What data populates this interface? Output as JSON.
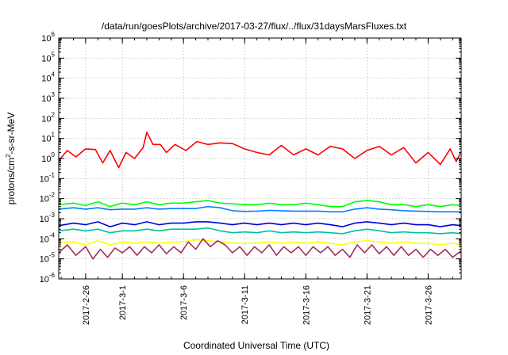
{
  "chart_data": {
    "type": "line",
    "title": "/data/run/goesPlots/archive/2017-03-27/flux/../flux/31daysMarsFluxes.txt",
    "xlabel": "Coordinated Universal Time (UTC)",
    "ylabel": "protons/cm²-s-sr-MeV",
    "ylabel_parts": [
      "protons/cm",
      "2",
      "-s-sr-MeV"
    ],
    "yscale": "log",
    "ylim_exp": [
      -6,
      6
    ],
    "y_tick_exps": [
      -6,
      -5,
      -4,
      -3,
      -2,
      -1,
      0,
      1,
      2,
      3,
      4,
      5,
      6
    ],
    "y_tick_base": "10",
    "xlim_days": [
      -5.2,
      27.7
    ],
    "x_tick_labels": [
      "2017-2-26",
      "2017-3-1",
      "2017-3-6",
      "2017-3-11",
      "2017-3-16",
      "2017-3-21",
      "2017-3-26"
    ],
    "x_tick_days": [
      -3,
      0,
      5,
      10,
      15,
      20,
      25
    ],
    "grid": true,
    "legend": "none",
    "series": [
      {
        "color": "#ff0000",
        "points": [
          [
            -5.2,
            0.8
          ],
          [
            -4.5,
            2.5
          ],
          [
            -3.8,
            1.2
          ],
          [
            -3.0,
            3.0
          ],
          [
            -2.2,
            2.8
          ],
          [
            -1.6,
            0.6
          ],
          [
            -1.0,
            2.5
          ],
          [
            -0.3,
            0.35
          ],
          [
            0.3,
            2.0
          ],
          [
            1.0,
            1.0
          ],
          [
            1.7,
            3.5
          ],
          [
            2.0,
            20
          ],
          [
            2.5,
            5
          ],
          [
            3.1,
            5
          ],
          [
            3.6,
            2
          ],
          [
            4.3,
            5
          ],
          [
            5.2,
            2.5
          ],
          [
            6.1,
            7.0
          ],
          [
            7.0,
            5
          ],
          [
            8.0,
            6
          ],
          [
            9.0,
            5.5
          ],
          [
            10.0,
            3
          ],
          [
            11.0,
            2
          ],
          [
            12.0,
            1.5
          ],
          [
            13.0,
            4.5
          ],
          [
            14.0,
            1.5
          ],
          [
            15.0,
            3
          ],
          [
            16.0,
            1.5
          ],
          [
            17.0,
            4
          ],
          [
            18.0,
            3
          ],
          [
            19.0,
            1.0
          ],
          [
            20.0,
            2.5
          ],
          [
            21.0,
            4
          ],
          [
            22.0,
            1.5
          ],
          [
            23.0,
            3.5
          ],
          [
            24.0,
            0.6
          ],
          [
            25.0,
            2.0
          ],
          [
            26.0,
            0.5
          ],
          [
            26.8,
            3.0
          ],
          [
            27.3,
            0.7
          ],
          [
            27.7,
            2.2
          ]
        ]
      },
      {
        "color": "#00ff00",
        "points": [
          [
            -5.2,
            0.005
          ],
          [
            -4.0,
            0.006
          ],
          [
            -3.0,
            0.0045
          ],
          [
            -2.0,
            0.007
          ],
          [
            -1.0,
            0.004
          ],
          [
            0.0,
            0.006
          ],
          [
            1.0,
            0.005
          ],
          [
            2.0,
            0.007
          ],
          [
            3.0,
            0.005
          ],
          [
            4.0,
            0.006
          ],
          [
            5.0,
            0.006
          ],
          [
            6.0,
            0.007
          ],
          [
            7.0,
            0.008
          ],
          [
            8.0,
            0.006
          ],
          [
            9.0,
            0.0055
          ],
          [
            10.0,
            0.005
          ],
          [
            11.0,
            0.005
          ],
          [
            12.0,
            0.006
          ],
          [
            13.0,
            0.005
          ],
          [
            14.0,
            0.005
          ],
          [
            15.0,
            0.006
          ],
          [
            16.0,
            0.005
          ],
          [
            17.0,
            0.004
          ],
          [
            18.0,
            0.004
          ],
          [
            19.0,
            0.007
          ],
          [
            20.0,
            0.008
          ],
          [
            21.0,
            0.007
          ],
          [
            22.0,
            0.005
          ],
          [
            23.0,
            0.005
          ],
          [
            24.0,
            0.004
          ],
          [
            25.0,
            0.005
          ],
          [
            26.0,
            0.004
          ],
          [
            27.0,
            0.005
          ],
          [
            27.7,
            0.0045
          ]
        ]
      },
      {
        "color": "#0080ff",
        "points": [
          [
            -5.2,
            0.003
          ],
          [
            -4.0,
            0.0035
          ],
          [
            -3.0,
            0.003
          ],
          [
            -2.0,
            0.0035
          ],
          [
            -1.0,
            0.0028
          ],
          [
            0.0,
            0.003
          ],
          [
            1.0,
            0.003
          ],
          [
            2.0,
            0.0035
          ],
          [
            3.0,
            0.003
          ],
          [
            4.0,
            0.0032
          ],
          [
            5.0,
            0.0032
          ],
          [
            6.0,
            0.0032
          ],
          [
            7.0,
            0.004
          ],
          [
            8.0,
            0.0035
          ],
          [
            9.0,
            0.0025
          ],
          [
            10.0,
            0.0023
          ],
          [
            11.0,
            0.0024
          ],
          [
            12.0,
            0.0026
          ],
          [
            13.0,
            0.0025
          ],
          [
            14.0,
            0.0024
          ],
          [
            15.0,
            0.0024
          ],
          [
            16.0,
            0.0024
          ],
          [
            17.0,
            0.0022
          ],
          [
            18.0,
            0.0022
          ],
          [
            19.0,
            0.003
          ],
          [
            20.0,
            0.0035
          ],
          [
            21.0,
            0.003
          ],
          [
            22.0,
            0.0028
          ],
          [
            23.0,
            0.0025
          ],
          [
            24.0,
            0.0024
          ],
          [
            25.0,
            0.0023
          ],
          [
            26.0,
            0.0022
          ],
          [
            27.0,
            0.0022
          ],
          [
            27.7,
            0.0022
          ]
        ]
      },
      {
        "color": "#0000e0",
        "points": [
          [
            -5.2,
            0.00045
          ],
          [
            -4.0,
            0.0006
          ],
          [
            -3.0,
            0.0005
          ],
          [
            -2.0,
            0.0007
          ],
          [
            -1.0,
            0.0004
          ],
          [
            0.0,
            0.0006
          ],
          [
            1.0,
            0.0005
          ],
          [
            2.0,
            0.0007
          ],
          [
            3.0,
            0.0005
          ],
          [
            4.0,
            0.0006
          ],
          [
            5.0,
            0.0006
          ],
          [
            6.0,
            0.0007
          ],
          [
            7.0,
            0.0007
          ],
          [
            8.0,
            0.0006
          ],
          [
            9.0,
            0.0005
          ],
          [
            10.0,
            0.0006
          ],
          [
            11.0,
            0.0005
          ],
          [
            12.0,
            0.0006
          ],
          [
            13.0,
            0.0005
          ],
          [
            14.0,
            0.0006
          ],
          [
            15.0,
            0.0005
          ],
          [
            16.0,
            0.0006
          ],
          [
            17.0,
            0.0005
          ],
          [
            18.0,
            0.0004
          ],
          [
            19.0,
            0.0006
          ],
          [
            20.0,
            0.0007
          ],
          [
            21.0,
            0.0006
          ],
          [
            22.0,
            0.0005
          ],
          [
            23.0,
            0.0006
          ],
          [
            24.0,
            0.0005
          ],
          [
            25.0,
            0.0005
          ],
          [
            26.0,
            0.0004
          ],
          [
            27.0,
            0.0005
          ],
          [
            27.7,
            0.00045
          ]
        ]
      },
      {
        "color": "#00c0a0",
        "points": [
          [
            -5.2,
            0.00025
          ],
          [
            -4.0,
            0.0003
          ],
          [
            -3.0,
            0.00025
          ],
          [
            -2.0,
            0.0003
          ],
          [
            -1.0,
            0.0002
          ],
          [
            0.0,
            0.00025
          ],
          [
            1.0,
            0.00025
          ],
          [
            2.0,
            0.0003
          ],
          [
            3.0,
            0.00025
          ],
          [
            4.0,
            0.0003
          ],
          [
            5.0,
            0.0003
          ],
          [
            6.0,
            0.0003
          ],
          [
            7.0,
            0.00035
          ],
          [
            8.0,
            0.00025
          ],
          [
            9.0,
            0.0002
          ],
          [
            10.0,
            0.00022
          ],
          [
            11.0,
            0.0002
          ],
          [
            12.0,
            0.00025
          ],
          [
            13.0,
            0.0002
          ],
          [
            14.0,
            0.00022
          ],
          [
            15.0,
            0.0002
          ],
          [
            16.0,
            0.00022
          ],
          [
            17.0,
            0.0002
          ],
          [
            18.0,
            0.00018
          ],
          [
            19.0,
            0.00025
          ],
          [
            20.0,
            0.0003
          ],
          [
            21.0,
            0.00025
          ],
          [
            22.0,
            0.0002
          ],
          [
            23.0,
            0.00022
          ],
          [
            24.0,
            0.0002
          ],
          [
            25.0,
            0.0002
          ],
          [
            26.0,
            0.00018
          ],
          [
            27.0,
            0.0002
          ],
          [
            27.7,
            0.00018
          ]
        ]
      },
      {
        "color": "#ffff00",
        "points": [
          [
            -5.2,
            6e-05
          ],
          [
            -4.0,
            7e-05
          ],
          [
            -3.0,
            5e-05
          ],
          [
            -2.0,
            8e-05
          ],
          [
            -1.0,
            5e-05
          ],
          [
            0.0,
            7e-05
          ],
          [
            1.0,
            6e-05
          ],
          [
            2.0,
            7e-05
          ],
          [
            3.0,
            6e-05
          ],
          [
            4.0,
            7e-05
          ],
          [
            5.0,
            7e-05
          ],
          [
            6.0,
            9e-05
          ],
          [
            7.0,
            8e-05
          ],
          [
            8.0,
            7e-05
          ],
          [
            9.0,
            6e-05
          ],
          [
            10.0,
            6e-05
          ],
          [
            11.0,
            6e-05
          ],
          [
            12.0,
            7e-05
          ],
          [
            13.0,
            6e-05
          ],
          [
            14.0,
            7e-05
          ],
          [
            15.0,
            6e-05
          ],
          [
            16.0,
            7e-05
          ],
          [
            17.0,
            6e-05
          ],
          [
            18.0,
            5e-05
          ],
          [
            19.0,
            7e-05
          ],
          [
            20.0,
            8e-05
          ],
          [
            21.0,
            7e-05
          ],
          [
            22.0,
            6e-05
          ],
          [
            23.0,
            7e-05
          ],
          [
            24.0,
            6e-05
          ],
          [
            25.0,
            6e-05
          ],
          [
            26.0,
            5e-05
          ],
          [
            27.0,
            6e-05
          ],
          [
            27.7,
            5e-05
          ]
        ]
      },
      {
        "color": "#a0305a",
        "points": [
          [
            -5.2,
            2e-05
          ],
          [
            -4.5,
            5e-05
          ],
          [
            -3.8,
            1.5e-05
          ],
          [
            -3.0,
            4e-05
          ],
          [
            -2.4,
            1e-05
          ],
          [
            -1.8,
            3e-05
          ],
          [
            -1.2,
            1.2e-05
          ],
          [
            -0.6,
            3.5e-05
          ],
          [
            0.0,
            2e-05
          ],
          [
            0.6,
            4e-05
          ],
          [
            1.2,
            1.5e-05
          ],
          [
            1.8,
            4e-05
          ],
          [
            2.4,
            2e-05
          ],
          [
            3.0,
            5e-05
          ],
          [
            3.6,
            1.8e-05
          ],
          [
            4.2,
            4e-05
          ],
          [
            4.8,
            2e-05
          ],
          [
            5.4,
            7e-05
          ],
          [
            6.0,
            3e-05
          ],
          [
            6.6,
            0.0001
          ],
          [
            7.2,
            4e-05
          ],
          [
            7.8,
            8e-05
          ],
          [
            8.4,
            5e-05
          ],
          [
            9.0,
            2e-05
          ],
          [
            9.6,
            4e-05
          ],
          [
            10.2,
            1.5e-05
          ],
          [
            10.8,
            4e-05
          ],
          [
            11.4,
            2e-05
          ],
          [
            12.0,
            5e-05
          ],
          [
            12.6,
            1.5e-05
          ],
          [
            13.2,
            4e-05
          ],
          [
            13.8,
            2e-05
          ],
          [
            14.4,
            4e-05
          ],
          [
            15.0,
            1.5e-05
          ],
          [
            15.6,
            4e-05
          ],
          [
            16.2,
            2e-05
          ],
          [
            16.8,
            4e-05
          ],
          [
            17.4,
            1.5e-05
          ],
          [
            18.0,
            3e-05
          ],
          [
            18.6,
            1.2e-05
          ],
          [
            19.2,
            5e-05
          ],
          [
            19.8,
            2e-05
          ],
          [
            20.4,
            5e-05
          ],
          [
            21.0,
            1.8e-05
          ],
          [
            21.6,
            4e-05
          ],
          [
            22.2,
            1.5e-05
          ],
          [
            22.8,
            4e-05
          ],
          [
            23.4,
            1.5e-05
          ],
          [
            24.0,
            3e-05
          ],
          [
            24.6,
            1.2e-05
          ],
          [
            25.2,
            3e-05
          ],
          [
            25.8,
            1.5e-05
          ],
          [
            26.4,
            3e-05
          ],
          [
            27.0,
            1.2e-05
          ],
          [
            27.7,
            2.5e-05
          ]
        ]
      }
    ]
  }
}
